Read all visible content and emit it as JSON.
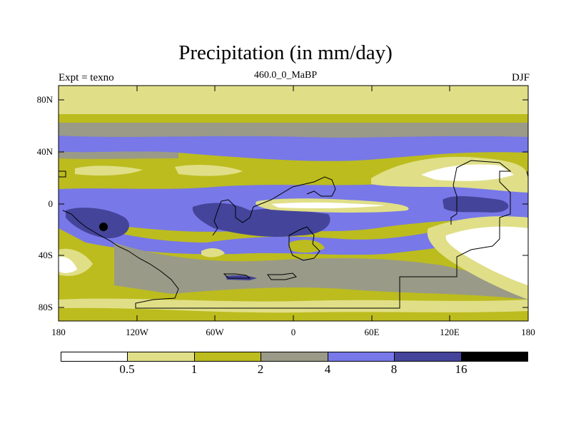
{
  "title": "Precipitation (in mm/day)",
  "left_label": "Expt = texno",
  "center_label": "460.0_0_MaBP",
  "right_label": "DJF",
  "lat_labels": [
    "80N",
    "40N",
    "0",
    "40S",
    "80S"
  ],
  "lon_labels": [
    "180",
    "120W",
    "60W",
    "0",
    "60E",
    "120E",
    "180"
  ],
  "colorbar": {
    "levels": [
      "0.5",
      "1",
      "2",
      "4",
      "8",
      "16"
    ],
    "colors": [
      "#ffffff",
      "#e0df88",
      "#bcbc1e",
      "#9a9a88",
      "#7878e8",
      "#44449a",
      "#000000"
    ]
  }
}
